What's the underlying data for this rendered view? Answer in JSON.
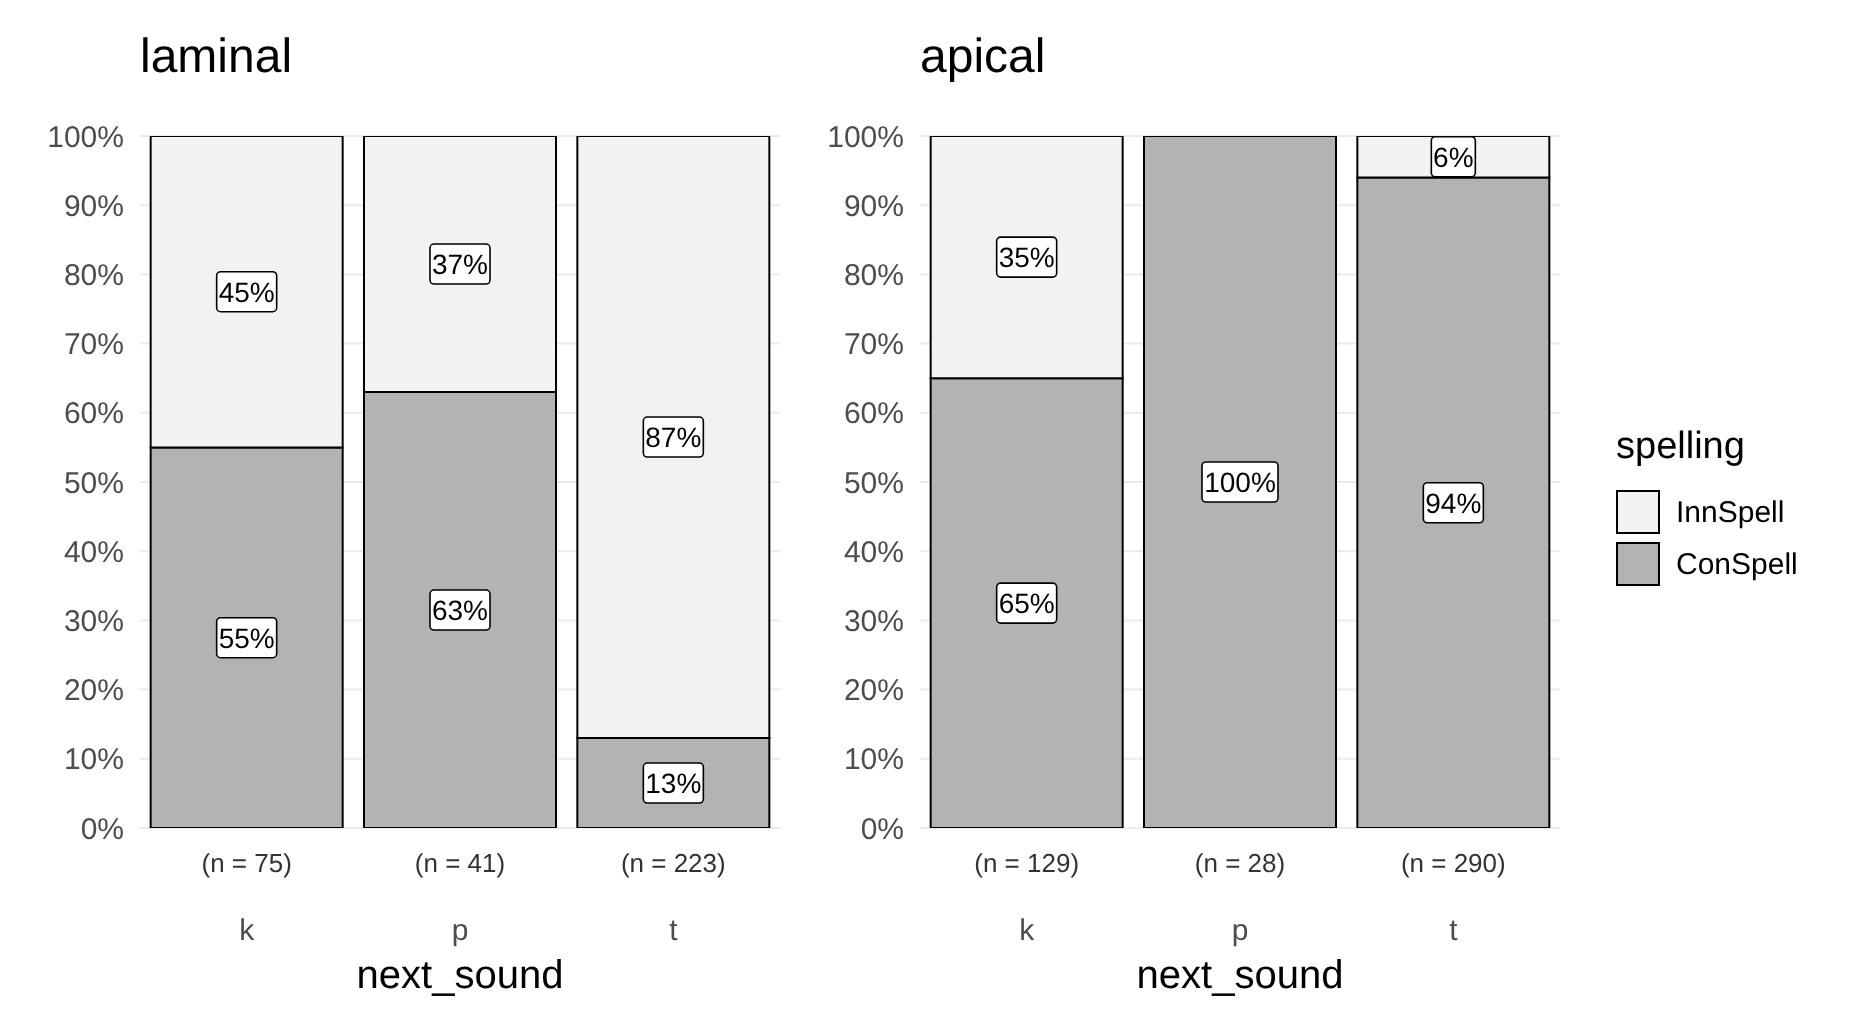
{
  "chart_data": [
    {
      "type": "bar",
      "title": "laminal",
      "xlabel": "next_sound",
      "categories": [
        "k",
        "p",
        "t"
      ],
      "stacked": true,
      "grid": "y",
      "ylim": [
        0,
        100
      ],
      "yticks": [
        {
          "value": 0,
          "label": "0%"
        },
        {
          "value": 10,
          "label": "10%"
        },
        {
          "value": 20,
          "label": "20%"
        },
        {
          "value": 30,
          "label": "30%"
        },
        {
          "value": 40,
          "label": "40%"
        },
        {
          "value": 50,
          "label": "50%"
        },
        {
          "value": 60,
          "label": "60%"
        },
        {
          "value": 70,
          "label": "70%"
        },
        {
          "value": 80,
          "label": "80%"
        },
        {
          "value": 90,
          "label": "90%"
        },
        {
          "value": 100,
          "label": "100%"
        }
      ],
      "series": [
        {
          "color": "#b3b3b3",
          "values": [
            55,
            63,
            13
          ],
          "value_labels": [
            "55%",
            "63%",
            "13%"
          ]
        },
        {
          "color": "#f2f2f2",
          "values": [
            45,
            37,
            87
          ],
          "value_labels": [
            "45%",
            "37%",
            "87%"
          ]
        }
      ],
      "annotations": [
        "(n = 75)",
        "(n = 41)",
        "(n = 223)"
      ]
    },
    {
      "type": "bar",
      "title": "apical",
      "xlabel": "next_sound",
      "categories": [
        "k",
        "p",
        "t"
      ],
      "stacked": true,
      "grid": "y",
      "legend": "right",
      "legend_title": "spelling",
      "ylim": [
        0,
        100
      ],
      "yticks": [
        {
          "value": 0,
          "label": "0%"
        },
        {
          "value": 10,
          "label": "10%"
        },
        {
          "value": 20,
          "label": "20%"
        },
        {
          "value": 30,
          "label": "30%"
        },
        {
          "value": 40,
          "label": "40%"
        },
        {
          "value": 50,
          "label": "50%"
        },
        {
          "value": 60,
          "label": "60%"
        },
        {
          "value": 70,
          "label": "70%"
        },
        {
          "value": 80,
          "label": "80%"
        },
        {
          "value": 90,
          "label": "90%"
        },
        {
          "value": 100,
          "label": "100%"
        }
      ],
      "series": [
        {
          "name": "ConSpell",
          "color": "#b3b3b3",
          "values": [
            65,
            100,
            94
          ],
          "value_labels": [
            "65%",
            "100%",
            "94%"
          ]
        },
        {
          "name": "InnSpell",
          "color": "#f2f2f2",
          "values": [
            35,
            0,
            6
          ],
          "value_labels": [
            "35%",
            null,
            "6%"
          ]
        }
      ],
      "annotations": [
        "(n = 129)",
        "(n = 28)",
        "(n = 290)"
      ]
    }
  ]
}
